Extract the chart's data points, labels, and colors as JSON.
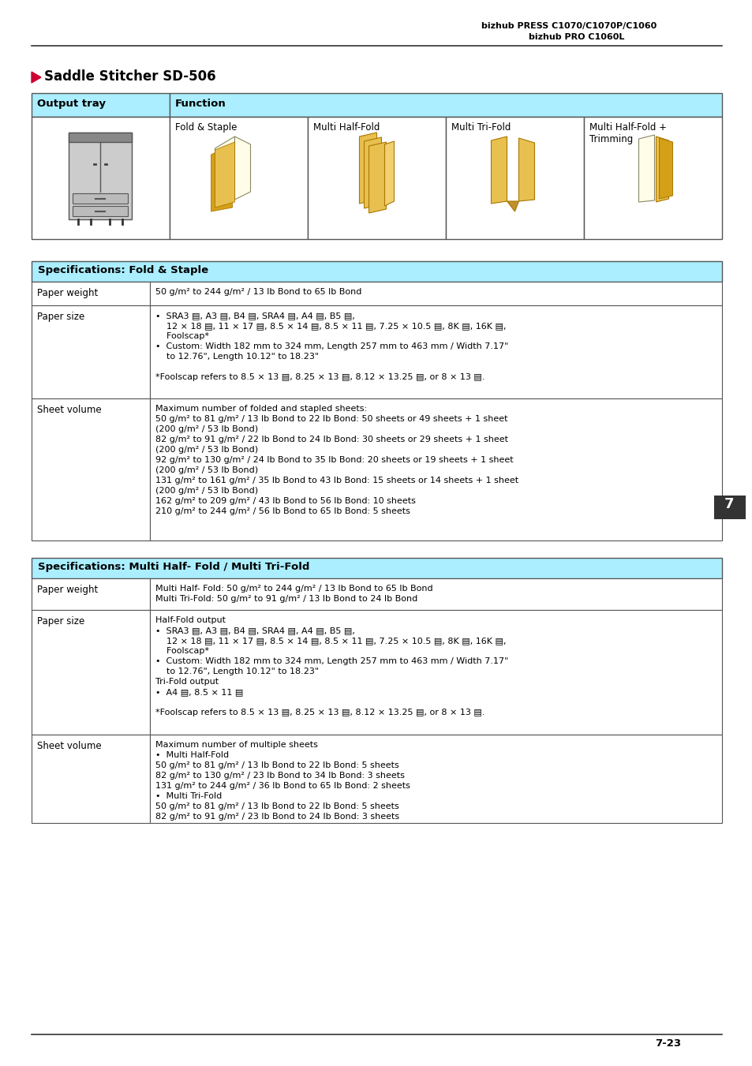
{
  "page_header_line1": "bizhub PRESS C1070/C1070P/C1060",
  "page_header_line2": "bizhub PRO C1060L",
  "section_title": "Saddle Stitcher SD-506",
  "header_bg": "#aaeeff",
  "table_border": "#666666",
  "page_number": "7-23",
  "page_number_side": "7",
  "arrow_color": "#cc0033",
  "table1_header": "Output tray",
  "table1_func_header": "Function",
  "table1_cols": [
    "Fold & Staple",
    "Multi Half-Fold",
    "Multi Tri-Fold",
    "Multi Half-Fold +\nTrimming"
  ],
  "spec_fold_staple_title": "Specifications: Fold & Staple",
  "spec_fold_staple_rows": [
    [
      "Paper weight",
      "50 g/m² to 244 g/m² / 13 lb Bond to 65 lb Bond"
    ],
    [
      "Paper size",
      "•  SRA3 ▤, A3 ▤, B4 ▤, SRA4 ▤, A4 ▤, B5 ▤,\n    12 × 18 ▤, 11 × 17 ▤, 8.5 × 14 ▤, 8.5 × 11 ▤, 7.25 × 10.5 ▤, 8K ▤, 16K ▤,\n    Foolscap*\n•  Custom: Width 182 mm to 324 mm, Length 257 mm to 463 mm / Width 7.17\"\n    to 12.76\", Length 10.12\" to 18.23\"\n\n*Foolscap refers to 8.5 × 13 ▤, 8.25 × 13 ▤, 8.12 × 13.25 ▤, or 8 × 13 ▤."
    ],
    [
      "Sheet volume",
      "Maximum number of folded and stapled sheets:\n50 g/m² to 81 g/m² / 13 lb Bond to 22 lb Bond: 50 sheets or 49 sheets + 1 sheet\n(200 g/m² / 53 lb Bond)\n82 g/m² to 91 g/m² / 22 lb Bond to 24 lb Bond: 30 sheets or 29 sheets + 1 sheet\n(200 g/m² / 53 lb Bond)\n92 g/m² to 130 g/m² / 24 lb Bond to 35 lb Bond: 20 sheets or 19 sheets + 1 sheet\n(200 g/m² / 53 lb Bond)\n131 g/m² to 161 g/m² / 35 lb Bond to 43 lb Bond: 15 sheets or 14 sheets + 1 sheet\n(200 g/m² / 53 lb Bond)\n162 g/m² to 209 g/m² / 43 lb Bond to 56 lb Bond: 10 sheets\n210 g/m² to 244 g/m² / 56 lb Bond to 65 lb Bond: 5 sheets"
    ]
  ],
  "spec_multi_title": "Specifications: Multi Half- Fold / Multi Tri-Fold",
  "spec_multi_rows": [
    [
      "Paper weight",
      "Multi Half- Fold: 50 g/m² to 244 g/m² / 13 lb Bond to 65 lb Bond\nMulti Tri-Fold: 50 g/m² to 91 g/m² / 13 lb Bond to 24 lb Bond"
    ],
    [
      "Paper size",
      "Half-Fold output\n•  SRA3 ▤, A3 ▤, B4 ▤, SRA4 ▤, A4 ▤, B5 ▤,\n    12 × 18 ▤, 11 × 17 ▤, 8.5 × 14 ▤, 8.5 × 11 ▤, 7.25 × 10.5 ▤, 8K ▤, 16K ▤,\n    Foolscap*\n•  Custom: Width 182 mm to 324 mm, Length 257 mm to 463 mm / Width 7.17\"\n    to 12.76\", Length 10.12\" to 18.23\"\nTri-Fold output\n•  A4 ▤, 8.5 × 11 ▤\n\n*Foolscap refers to 8.5 × 13 ▤, 8.25 × 13 ▤, 8.12 × 13.25 ▤, or 8 × 13 ▤."
    ],
    [
      "Sheet volume",
      "Maximum number of multiple sheets\n•  Multi Half-Fold\n50 g/m² to 81 g/m² / 13 lb Bond to 22 lb Bond: 5 sheets\n82 g/m² to 130 g/m² / 23 lb Bond to 34 lb Bond: 3 sheets\n131 g/m² to 244 g/m² / 36 lb Bond to 65 lb Bond: 2 sheets\n•  Multi Tri-Fold\n50 g/m² to 81 g/m² / 13 lb Bond to 22 lb Bond: 5 sheets\n82 g/m² to 91 g/m² / 23 lb Bond to 24 lb Bond: 3 sheets"
    ]
  ]
}
